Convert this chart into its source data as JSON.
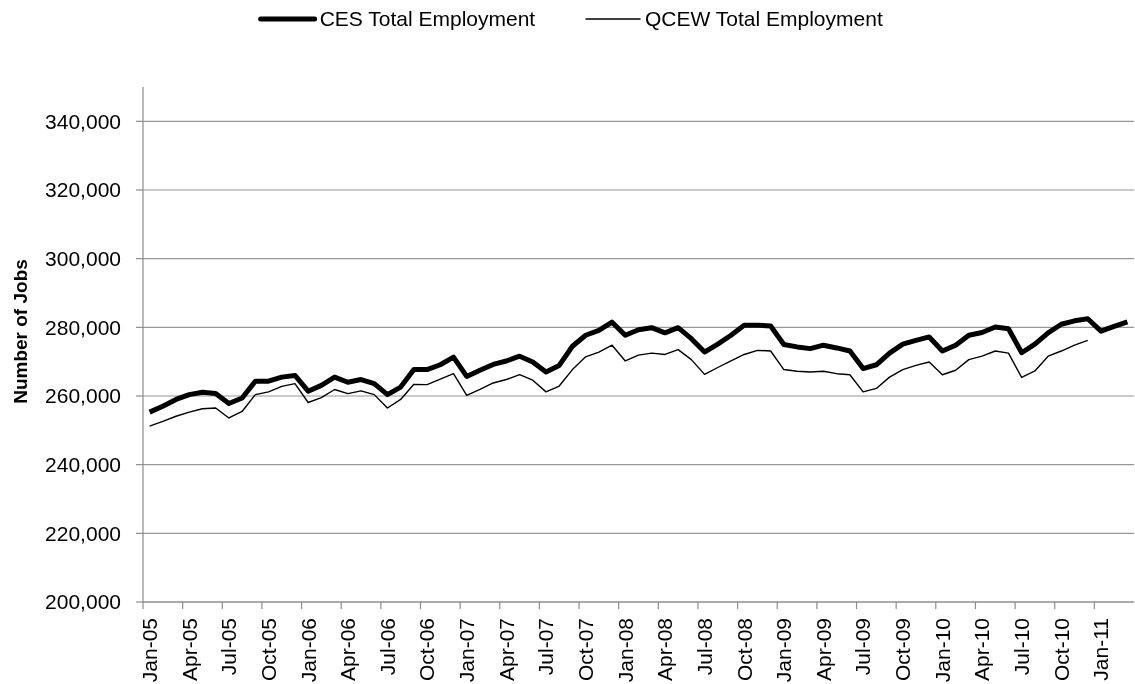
{
  "chart_data": {
    "type": "line",
    "ylabel": "Number of Jobs",
    "categories": [
      "Jan-05",
      null,
      null,
      "Apr-05",
      null,
      null,
      "Jul-05",
      null,
      null,
      "Oct-05",
      null,
      null,
      "Jan-06",
      null,
      null,
      "Apr-06",
      null,
      null,
      "Jul-06",
      null,
      null,
      "Oct-06",
      null,
      null,
      "Jan-07",
      null,
      null,
      "Apr-07",
      null,
      null,
      "Jul-07",
      null,
      null,
      "Oct-07",
      null,
      null,
      "Jan-08",
      null,
      null,
      "Apr-08",
      null,
      null,
      "Jul-08",
      null,
      null,
      "Oct-08",
      null,
      null,
      "Jan-09",
      null,
      null,
      "Apr-09",
      null,
      null,
      "Jul-09",
      null,
      null,
      "Oct-09",
      null,
      null,
      "Jan-10",
      null,
      null,
      "Apr-10",
      null,
      null,
      "Jul-10",
      null,
      null,
      "Oct-10",
      null,
      null,
      "Jan-11",
      null,
      null
    ],
    "series": [
      {
        "name": "CES Total Employment",
        "color": "#000000",
        "values": [
          255300,
          257000,
          259000,
          260400,
          261100,
          260700,
          257800,
          259400,
          264300,
          264300,
          265500,
          266000,
          261400,
          263100,
          265500,
          264000,
          264800,
          263600,
          260400,
          262600,
          267700,
          267700,
          269100,
          271300,
          265700,
          267500,
          269200,
          270200,
          271600,
          269900,
          267000,
          268900,
          274500,
          277700,
          279100,
          281500,
          277700,
          279300,
          279900,
          278400,
          279900,
          276700,
          272800,
          275100,
          277700,
          280600,
          280600,
          280400,
          275000,
          274300,
          273800,
          274800,
          274000,
          273100,
          268000,
          269100,
          272500,
          275100,
          276200,
          277200,
          273100,
          274800,
          277700,
          278500,
          280100,
          279600,
          272600,
          275100,
          278400,
          280900,
          281900,
          282500,
          278900,
          280300,
          281600
        ]
      },
      {
        "name": "QCEW Total Employment",
        "color": "#000000",
        "values": [
          251200,
          252600,
          254100,
          255300,
          256300,
          256500,
          253600,
          255500,
          260400,
          261200,
          262800,
          263600,
          258100,
          259500,
          261900,
          260700,
          261500,
          260400,
          256500,
          259000,
          263400,
          263300,
          264900,
          266500,
          260200,
          261900,
          263800,
          264800,
          266200,
          264600,
          261200,
          262900,
          267700,
          271400,
          272800,
          274800,
          270200,
          271900,
          272500,
          272100,
          273500,
          270600,
          266300,
          268300,
          270200,
          272100,
          273300,
          273100,
          267700,
          267200,
          267000,
          267200,
          266500,
          266200,
          261200,
          262200,
          265500,
          267700,
          268900,
          269900,
          266200,
          267500,
          270600,
          271600,
          273100,
          272500,
          265400,
          267300,
          271600,
          273100,
          274800,
          276200,
          null,
          null,
          null
        ]
      }
    ],
    "ylim": [
      200000,
      350000
    ],
    "yticks": [
      {
        "value": 200000,
        "label": "200,000"
      },
      {
        "value": 220000,
        "label": "220,000"
      },
      {
        "value": 240000,
        "label": "240,000"
      },
      {
        "value": 260000,
        "label": "260,000"
      },
      {
        "value": 280000,
        "label": "280,000"
      },
      {
        "value": 300000,
        "label": "300,000"
      },
      {
        "value": 320000,
        "label": "320,000"
      },
      {
        "value": 340000,
        "label": "340,000"
      }
    ],
    "grid": "y",
    "legend": "top"
  }
}
